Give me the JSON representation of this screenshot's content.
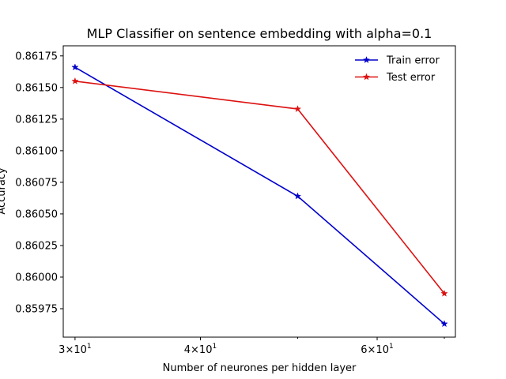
{
  "chart_data": {
    "type": "line",
    "title": "MLP Classifier on sentence embedding with alpha=0.1",
    "xlabel": "Number of neurones per hidden layer",
    "ylabel": "Accuracy",
    "xscale": "log",
    "x": [
      30,
      50,
      70
    ],
    "xlim": [
      29.2,
      71.8
    ],
    "ylim": [
      0.859525,
      0.86183
    ],
    "x_ticks": [
      {
        "value": 30,
        "base": "3×10",
        "exp": "1"
      },
      {
        "value": 40,
        "base": "4×10",
        "exp": "1"
      },
      {
        "value": 60,
        "base": "6×10",
        "exp": "1"
      }
    ],
    "y_ticks": [
      {
        "value": 0.85975,
        "label": "0.85975"
      },
      {
        "value": 0.86,
        "label": "0.86000"
      },
      {
        "value": 0.86025,
        "label": "0.86025"
      },
      {
        "value": 0.8605,
        "label": "0.86050"
      },
      {
        "value": 0.86075,
        "label": "0.86075"
      },
      {
        "value": 0.861,
        "label": "0.86100"
      },
      {
        "value": 0.86125,
        "label": "0.86125"
      },
      {
        "value": 0.8615,
        "label": "0.86150"
      },
      {
        "value": 0.86175,
        "label": "0.86175"
      }
    ],
    "series": [
      {
        "name": "Train error",
        "color": "#0000cc",
        "marker": "star",
        "values": [
          0.86166,
          0.86064,
          0.85963
        ]
      },
      {
        "name": "Test error",
        "color": "#dd1111",
        "marker": "star",
        "values": [
          0.86155,
          0.86133,
          0.85987
        ]
      }
    ],
    "legend_position": "top-right",
    "grid": false
  }
}
